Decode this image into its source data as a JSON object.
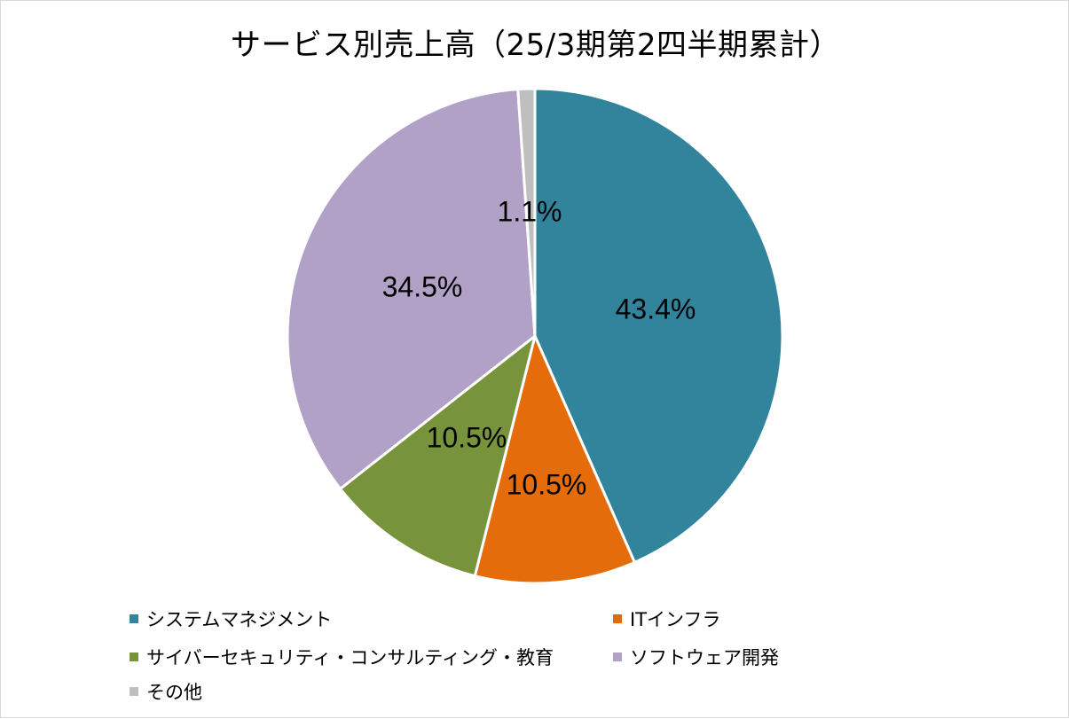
{
  "chart_data": {
    "type": "pie",
    "title": "サービス別売上高（25/3期第2四半期累計）",
    "slices": [
      {
        "label": "システムマネジメント",
        "value": 43.4,
        "display": "43.4%",
        "color": "#31849b"
      },
      {
        "label": "ITインフラ",
        "value": 10.5,
        "display": "10.5%",
        "color": "#e46c0a"
      },
      {
        "label": "サイバーセキュリティ・コンサルティング・教育",
        "value": 10.5,
        "display": "10.5%",
        "color": "#77933c"
      },
      {
        "label": "ソフトウェア開発",
        "value": 34.5,
        "display": "34.5%",
        "color": "#b2a1c7"
      },
      {
        "label": "その他",
        "value": 1.1,
        "display": "1.1%",
        "color": "#bfbfbf"
      }
    ],
    "legend_position": "bottom"
  }
}
